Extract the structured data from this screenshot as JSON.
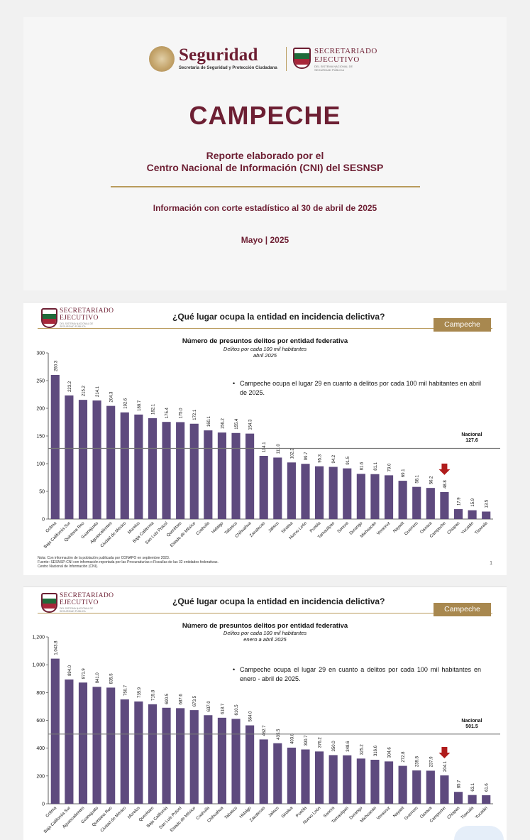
{
  "cover": {
    "seguridad": "Seguridad",
    "seguridad_sub": "Secretaría de Seguridad y Protección Ciudadana",
    "se_line1": "SECRETARIADO",
    "se_line2": "EJECUTIVO",
    "se_tiny": "DEL SISTEMA NACIONAL DE SEGURIDAD PÚBLICA",
    "title": "CAMPECHE",
    "subtitle_line1": "Reporte elaborado por el",
    "subtitle_line2": "Centro Nacional de Información (CNI) del SESNSP",
    "cutoff": "Información con corte estadístico al 30 de abril de 2025",
    "date": "Mayo | 2025"
  },
  "slides": [
    {
      "brand_line1": "SECRETARIADO",
      "brand_line2": "EJECUTIVO",
      "brand_tiny": "DEL SISTEMA NACIONAL DE SEGURIDAD PÚBLICA",
      "question": "¿Qué lugar ocupa la entidad en incidencia delictiva?",
      "tag": "Campeche",
      "chart_title": "Número de presuntos delitos por entidad federativa",
      "chart_sub1": "Delitos por cada 100 mil habitantes",
      "chart_sub2": "abril 2025",
      "bullet": "Campeche ocupa el lugar 29 en cuanto a delitos por cada 100 mil habitantes en abril de 2025.",
      "national_label": "Nacional",
      "national_value": "127.6",
      "note1": "Nota: Con información de la población publicada por CONAPO en septiembre 2023.",
      "note2": "Fuente: SESNSP-CNI con información reportada por las Procuradurías o Fiscalías de las 32 entidades federativas.",
      "note3": "Centro Nacional de Información (CNI).",
      "page": "1"
    },
    {
      "brand_line1": "SECRETARIADO",
      "brand_line2": "EJECUTIVO",
      "brand_tiny": "DEL SISTEMA NACIONAL DE SEGURIDAD PÚBLICA",
      "question": "¿Qué lugar ocupa la entidad en incidencia delictiva?",
      "tag": "Campeche",
      "chart_title": "Número de presuntos delitos por entidad federativa",
      "chart_sub1": "Delitos por cada 100 mil habitantes",
      "chart_sub2": "enero a abril 2025",
      "bullet": "Campeche ocupa el lugar 29 en cuanto a delitos por cada 100 mil habitantes en enero - abril de 2025.",
      "national_label": "Nacional",
      "national_value": "501.5"
    }
  ],
  "chart_data": [
    {
      "type": "bar",
      "title": "Número de presuntos delitos por entidad federativa",
      "subtitle": "Delitos por cada 100 mil habitantes, abril 2025",
      "categories": [
        "Colima",
        "Baja California Sur",
        "Quintana Roo",
        "Guanajuato",
        "Aguascalientes",
        "Ciudad de México",
        "Morelos",
        "Baja California",
        "San Luis Potosí",
        "Querétaro",
        "Estado de México",
        "Coahuila",
        "Hidalgo",
        "Tabasco",
        "Chihuahua",
        "Zacatecas",
        "Jalisco",
        "Sinaloa",
        "Nuevo León",
        "Puebla",
        "Tamaulipas",
        "Sonora",
        "Durango",
        "Michoacán",
        "Veracruz",
        "Nayarit",
        "Guerrero",
        "Oaxaca",
        "Campeche",
        "Chiapas",
        "Yucatán",
        "Tlaxcala"
      ],
      "values": [
        260.3,
        223.2,
        215.2,
        214.1,
        204.3,
        192.6,
        188.7,
        182.1,
        175.4,
        175.0,
        172.1,
        160.1,
        156.2,
        155.4,
        154.3,
        114.1,
        111.0,
        102.2,
        99.7,
        95.3,
        94.2,
        91.5,
        81.6,
        81.1,
        79.0,
        69.1,
        58.1,
        56.2,
        48.8,
        17.9,
        15.9,
        13.5
      ],
      "value_labels": [
        "260.3",
        "223.2",
        "215.2",
        "214.1",
        "204.3",
        "192.6",
        "188.7",
        "182.1",
        "175.4",
        "175.0",
        "172.1",
        "160.1",
        "156.2",
        "155.4",
        "154.3",
        "114.1",
        "111.0",
        "102.2",
        "99.7",
        "95.3",
        "94.2",
        "91.5",
        "81.6",
        "81.1",
        "79.0",
        "69.1",
        "58.1",
        "56.2",
        "48.8",
        "17.9",
        "15.9",
        "13.5"
      ],
      "ylim": [
        0,
        300
      ],
      "yticks": [
        0,
        50,
        100,
        150,
        200,
        250,
        300
      ],
      "ytick_labels": [
        "0",
        "50",
        "100",
        "150",
        "200",
        "250",
        "300"
      ],
      "national": 127.6,
      "highlight": "Campeche",
      "bar_color": "#5e4a7e",
      "arrow_color": "#b01c1c"
    },
    {
      "type": "bar",
      "title": "Número de presuntos delitos por entidad federativa",
      "subtitle": "Delitos por cada 100 mil habitantes, enero a abril 2025",
      "categories": [
        "Colima",
        "Baja California Sur",
        "Aguascalientes",
        "Guanajuato",
        "Quintana Roo",
        "Ciudad de México",
        "Morelos",
        "Querétaro",
        "Baja California",
        "San Luis Potosí",
        "Estado de México",
        "Coahuila",
        "Chihuahua",
        "Tabasco",
        "Hidalgo",
        "Zacatecas",
        "Jalisco",
        "Sinaloa",
        "Puebla",
        "Nuevo León",
        "Sonora",
        "Tamaulipas",
        "Durango",
        "Michoacán",
        "Veracruz",
        "Nayarit",
        "Guerrero",
        "Oaxaca",
        "Campeche",
        "Chiapas",
        "Tlaxcala",
        "Yucatán"
      ],
      "values": [
        1043.8,
        894.0,
        871.9,
        841.0,
        835.5,
        750.7,
        735.9,
        715.8,
        690.5,
        687.6,
        673.5,
        637.0,
        618.7,
        610.5,
        564.0,
        462.7,
        435.5,
        403.8,
        390.7,
        376.2,
        350.0,
        348.6,
        325.2,
        316.6,
        304.6,
        272.8,
        239.8,
        237.9,
        204.1,
        85.7,
        63.1,
        61.6
      ],
      "value_labels": [
        "1,043.8",
        "894.0",
        "871.9",
        "841.0",
        "835.5",
        "750.7",
        "735.9",
        "715.8",
        "690.5",
        "687.6",
        "673.5",
        "637.0",
        "618.7",
        "610.5",
        "564.0",
        "462.7",
        "435.5",
        "403.8",
        "390.7",
        "376.2",
        "350.0",
        "348.6",
        "325.2",
        "316.6",
        "304.6",
        "272.8",
        "239.8",
        "237.9",
        "204.1",
        "85.7",
        "63.1",
        "61.6"
      ],
      "ylim": [
        0,
        1200
      ],
      "yticks": [
        0,
        200,
        400,
        600,
        800,
        1000,
        1200
      ],
      "ytick_labels": [
        "0",
        "200",
        "400",
        "600",
        "800",
        "1,000",
        "1,200"
      ],
      "national": 501.5,
      "highlight": "Campeche",
      "bar_color": "#5e4a7e",
      "arrow_color": "#b01c1c"
    }
  ]
}
